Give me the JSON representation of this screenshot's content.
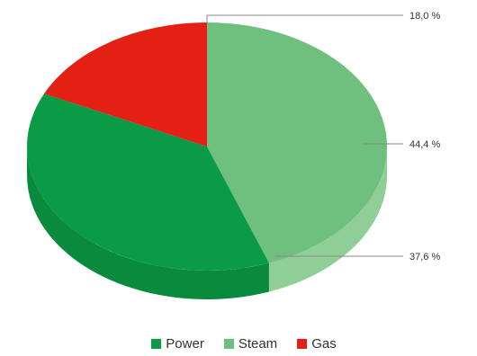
{
  "chart_data": {
    "type": "pie",
    "style": "3d",
    "categories": [
      "Power",
      "Steam",
      "Gas"
    ],
    "values": [
      37.6,
      44.4,
      18.0
    ],
    "value_labels": [
      "37,6 %",
      "44,4 %",
      "18,0 %"
    ],
    "colors": [
      "#0b9a45",
      "#6fbf7f",
      "#e41f13"
    ],
    "side_colors": [
      "#0a8a3d",
      "#8fce96",
      "#b91a12"
    ],
    "legend": {
      "position": "bottom"
    },
    "title": ""
  }
}
